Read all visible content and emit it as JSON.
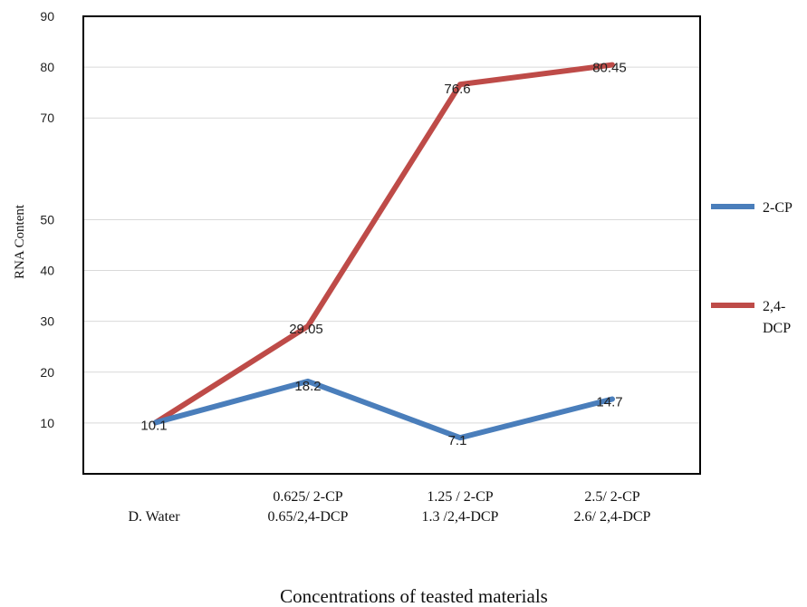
{
  "chart_data": {
    "type": "line",
    "title": "",
    "xlabel": "Concentrations of teasted materials",
    "ylabel": "RNA Content",
    "ylim": [
      0,
      90
    ],
    "yticks": [
      10,
      20,
      30,
      40,
      50,
      70,
      80,
      90
    ],
    "grid": true,
    "legend_position": "right",
    "categories": [
      [
        "D. Water"
      ],
      [
        "0.625/ 2-CP",
        "0.65/2,4-DCP"
      ],
      [
        "1.25 / 2-CP",
        "1.3 /2,4-DCP"
      ],
      [
        "2.5/ 2-CP",
        "2.6/ 2,4-DCP"
      ]
    ],
    "series": [
      {
        "name": "2-CP",
        "legend_lines": [
          "2-CP"
        ],
        "color": "#4a7ebb",
        "values": [
          10.1,
          18.2,
          7.1,
          14.7
        ],
        "labels": [
          "",
          "18.2",
          "7.1",
          "14.7"
        ]
      },
      {
        "name": "2,4-DCP",
        "legend_lines": [
          "2,4-",
          "DCP"
        ],
        "color": "#be4b48",
        "values": [
          10.1,
          29.05,
          76.6,
          80.45
        ],
        "labels": [
          "10.1",
          "29.05",
          "76.6",
          "80.45"
        ]
      }
    ]
  }
}
